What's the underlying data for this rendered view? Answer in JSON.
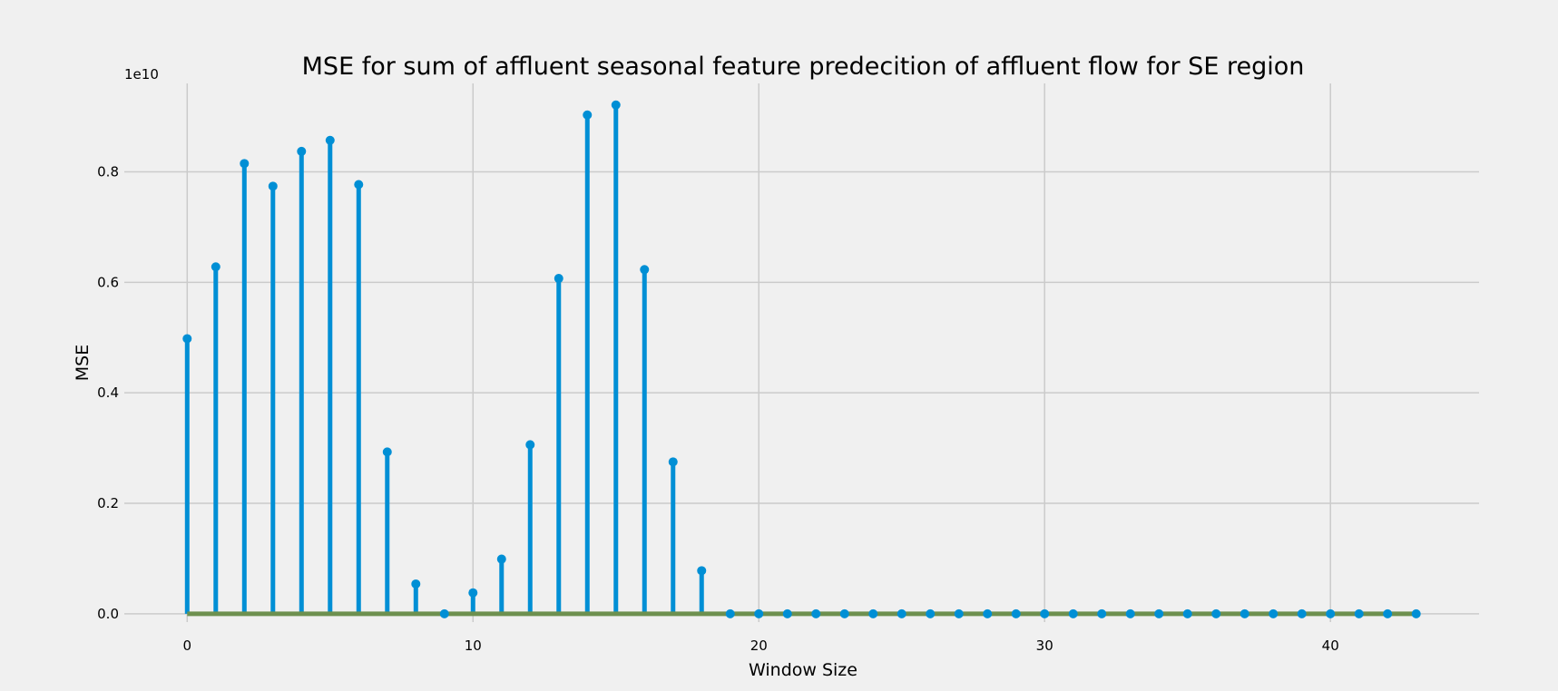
{
  "chart_data": {
    "type": "stem",
    "title": "MSE for sum of affluent seasonal feature predecition of affluent flow for SE region",
    "xlabel": "Window Size",
    "ylabel": "MSE",
    "y_offset_label": "1e10",
    "xlim": [
      -2.2,
      45.2
    ],
    "ylim": [
      -0.15,
      9.6
    ],
    "x_ticks": [
      0,
      10,
      20,
      30,
      40
    ],
    "x_tick_labels": [
      "0",
      "10",
      "20",
      "30",
      "40"
    ],
    "y_ticks": [
      0.0,
      2.0,
      4.0,
      6.0,
      8.0
    ],
    "y_tick_labels": [
      "0.0",
      "0.2",
      "0.4",
      "0.6",
      "0.8"
    ],
    "grid": true,
    "colors": {
      "stem": "#008fd5",
      "baseline": "#6d904f",
      "grid": "#cbcbcb",
      "background": "#f0f0f0"
    },
    "x": [
      0,
      1,
      2,
      3,
      4,
      5,
      6,
      7,
      8,
      9,
      10,
      11,
      12,
      13,
      14,
      15,
      16,
      17,
      18,
      19,
      20,
      21,
      22,
      23,
      24,
      25,
      26,
      27,
      28,
      29,
      30,
      31,
      32,
      33,
      34,
      35,
      36,
      37,
      38,
      39,
      40,
      41,
      42,
      43
    ],
    "values": [
      4.98,
      6.28,
      8.15,
      7.74,
      8.37,
      8.57,
      7.77,
      2.93,
      0.54,
      0.0,
      0.38,
      0.99,
      3.06,
      6.07,
      9.03,
      9.21,
      6.23,
      2.75,
      0.78,
      0,
      0,
      0,
      0,
      0,
      0,
      0,
      0,
      0,
      0,
      0,
      0,
      0,
      0,
      0,
      0,
      0,
      0,
      0,
      0,
      0,
      0,
      0,
      0,
      0
    ]
  }
}
